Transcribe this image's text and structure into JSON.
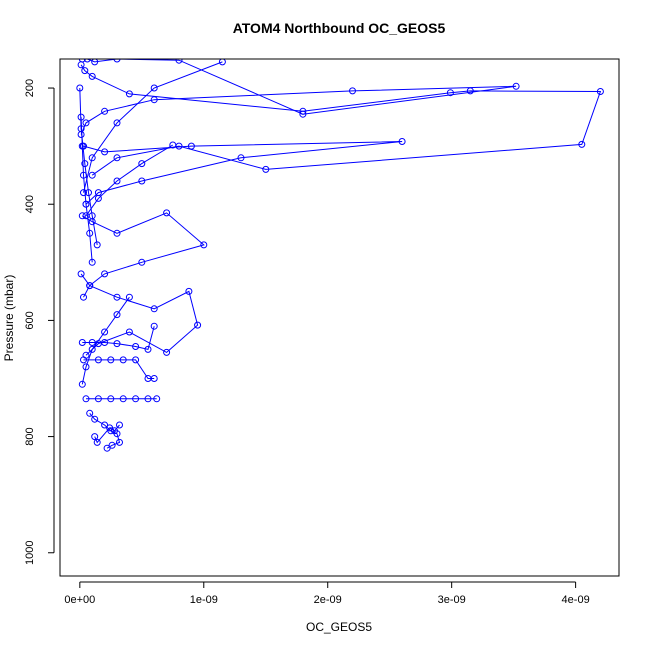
{
  "chart_data": {
    "type": "line",
    "title": "ATOM4 Northbound OC_GEOS5",
    "xlabel": "OC_GEOS5",
    "ylabel": "Pressure (mbar)",
    "x_ticks": [
      "0e+00",
      "1e-09",
      "2e-09",
      "3e-09",
      "4e-09"
    ],
    "y_ticks": [
      "200",
      "400",
      "600",
      "800",
      "1000"
    ],
    "xlim": [
      -1.6e-10,
      4.35e-09
    ],
    "ylim": [
      1040,
      150
    ],
    "y_reversed": true,
    "grid": false,
    "legend": "none",
    "series_color": "#0000ff",
    "markers": "open-circle",
    "series": [
      {
        "x": [
          2e-11,
          6e-11,
          1.2e-10,
          3e-10,
          8e-10,
          1.8e-09,
          3.52e-09,
          2.2e-09,
          6e-10,
          2e-10,
          5e-11,
          1e-11
        ],
        "y": [
          150,
          150,
          155,
          150,
          152,
          245,
          197,
          205,
          220,
          240,
          260,
          280
        ]
      },
      {
        "x": [
          1e-11,
          4e-11,
          1e-10,
          4e-10,
          1.8e-09,
          2.99e-09,
          3.15e-09,
          4.2e-09,
          4.05e-09,
          1.5e-09,
          8e-10,
          3e-10,
          1e-10
        ],
        "y": [
          160,
          170,
          180,
          210,
          240,
          208,
          205,
          206,
          297,
          340,
          300,
          320,
          350
        ]
      },
      {
        "x": [
          3e-11,
          2e-10,
          9e-10,
          2.6e-09,
          1.3e-09,
          5e-10,
          1.5e-10,
          5e-11
        ],
        "y": [
          300,
          310,
          300,
          292,
          320,
          360,
          380,
          400
        ]
      },
      {
        "x": [
          2e-11,
          1e-10,
          3e-10,
          7e-10,
          1e-09,
          5e-10,
          2e-10,
          8e-11,
          3e-11
        ],
        "y": [
          420,
          430,
          450,
          415,
          470,
          500,
          520,
          540,
          560
        ]
      },
      {
        "x": [
          1e-11,
          8e-11,
          3e-10,
          6e-10,
          8.8e-10,
          9.5e-10,
          7e-10,
          4e-10,
          1.5e-10,
          5e-11
        ],
        "y": [
          520,
          540,
          560,
          580,
          550,
          608,
          655,
          620,
          640,
          660
        ]
      },
      {
        "x": [
          2e-11,
          1e-10,
          2e-10,
          3e-10,
          4.5e-10,
          5.5e-10,
          6e-10
        ],
        "y": [
          638,
          638,
          638,
          640,
          645,
          650,
          610
        ]
      },
      {
        "x": [
          3e-11,
          1.5e-10,
          2.5e-10,
          3.5e-10,
          4.5e-10,
          5.5e-10,
          6e-10
        ],
        "y": [
          668,
          668,
          668,
          668,
          668,
          700,
          700
        ]
      },
      {
        "x": [
          5e-11,
          1.5e-10,
          2.5e-10,
          3.5e-10,
          4.5e-10,
          5.5e-10,
          6.2e-10
        ],
        "y": [
          735,
          735,
          735,
          735,
          735,
          735,
          735
        ]
      },
      {
        "x": [
          8e-11,
          1.2e-10,
          2e-10,
          2.5e-10,
          3e-10,
          3.2e-10,
          2.6e-10,
          2.2e-10
        ],
        "y": [
          760,
          770,
          780,
          790,
          795,
          810,
          815,
          820
        ]
      },
      {
        "x": [
          1.2e-10,
          1.4e-10,
          2.4e-10,
          2.8e-10,
          3.2e-10
        ],
        "y": [
          800,
          810,
          785,
          790,
          780
        ]
      },
      {
        "x": [
          1e-11,
          2e-11,
          3e-11,
          5e-11,
          8e-11,
          1e-10
        ],
        "y": [
          250,
          300,
          350,
          400,
          450,
          500
        ]
      },
      {
        "x": [
          0.0,
          1e-11,
          4e-11,
          7e-11,
          1e-10,
          1.4e-10
        ],
        "y": [
          200,
          270,
          330,
          380,
          420,
          470
        ]
      },
      {
        "x": [
          1.15e-09,
          6e-10,
          3e-10,
          1e-10,
          3e-11
        ],
        "y": [
          155,
          200,
          260,
          320,
          380
        ]
      },
      {
        "x": [
          7.5e-10,
          5e-10,
          3e-10,
          1.5e-10,
          5e-11
        ],
        "y": [
          298,
          330,
          360,
          390,
          420
        ]
      },
      {
        "x": [
          4e-10,
          3e-10,
          2e-10,
          1e-10,
          5e-11,
          2e-11
        ],
        "y": [
          560,
          590,
          620,
          650,
          680,
          710
        ]
      }
    ]
  }
}
